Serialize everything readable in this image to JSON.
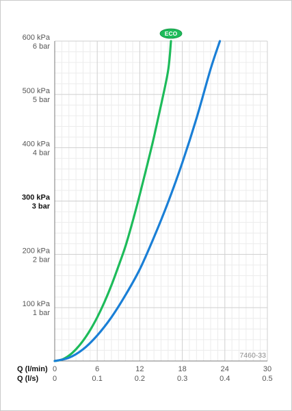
{
  "chart_data": {
    "type": "line",
    "code_label": "7460-33",
    "eco_badge": "ECO",
    "colors": {
      "eco": "#1dbb5a",
      "standard": "#1a7fd6",
      "grid_major": "#cfcfcf",
      "grid_minor": "#ececec",
      "axis": "#7a7a7a"
    },
    "x_axes": [
      {
        "label": "Q (l/min)",
        "ticks": [
          "0",
          "6",
          "12",
          "18",
          "24",
          "30"
        ],
        "values": [
          0,
          6,
          12,
          18,
          24,
          30
        ]
      },
      {
        "label": "Q (l/s)",
        "ticks": [
          "0",
          "0.1",
          "0.2",
          "0.3",
          "0.4",
          "0.5"
        ],
        "values": [
          0,
          0.1,
          0.2,
          0.3,
          0.4,
          0.5
        ]
      }
    ],
    "xlim": [
      0,
      30
    ],
    "ylim": [
      0,
      600
    ],
    "y_ticks": [
      {
        "value": 100,
        "kpa": "100 kPa",
        "bar": "1 bar",
        "bold": false
      },
      {
        "value": 200,
        "kpa": "200 kPa",
        "bar": "2 bar",
        "bold": false
      },
      {
        "value": 300,
        "kpa": "300 kPa",
        "bar": "3 bar",
        "bold": true
      },
      {
        "value": 400,
        "kpa": "400 kPa",
        "bar": "4 bar",
        "bold": false
      },
      {
        "value": 500,
        "kpa": "500 kPa",
        "bar": "5 bar",
        "bold": false
      },
      {
        "value": 600,
        "kpa": "600 kPa",
        "bar": "6 bar",
        "bold": false
      }
    ],
    "series": [
      {
        "key": "eco",
        "x": [
          0,
          1,
          2,
          3,
          4,
          5,
          6,
          7,
          8,
          9,
          10,
          11,
          12,
          13,
          14,
          15,
          16,
          16.4
        ],
        "y": [
          0,
          2.5,
          10,
          22,
          38,
          58,
          82,
          110,
          142,
          178,
          216,
          262,
          312,
          365,
          420,
          480,
          545,
          600
        ]
      },
      {
        "key": "standard",
        "x": [
          0,
          2,
          4,
          6,
          8,
          10,
          12,
          14,
          16,
          18,
          20,
          22,
          23.3
        ],
        "y": [
          0,
          6,
          22,
          48,
          82,
          124,
          172,
          232,
          298,
          372,
          455,
          548,
          600
        ]
      }
    ]
  }
}
